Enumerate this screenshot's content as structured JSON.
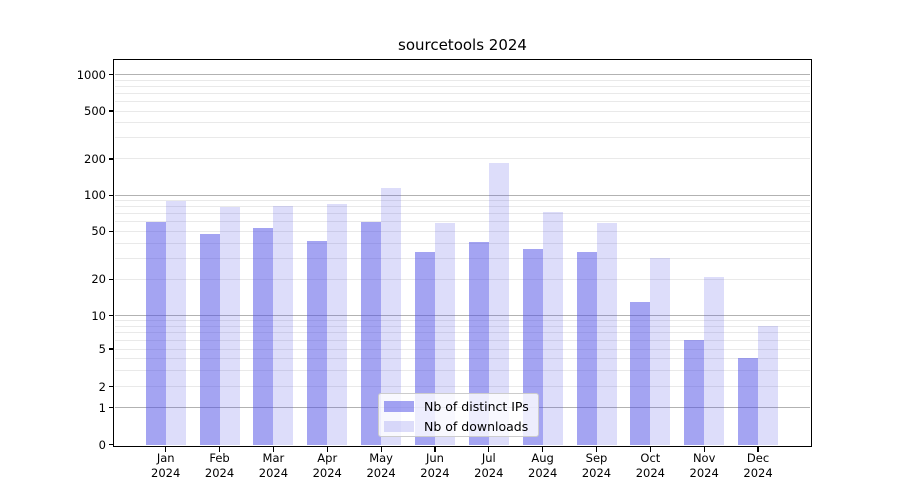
{
  "title": "sourcetools 2024",
  "chart_data": {
    "type": "bar",
    "title": "sourcetools 2024",
    "categories": [
      "Jan 2024",
      "Feb 2024",
      "Mar 2024",
      "Apr 2024",
      "May 2024",
      "Jun 2024",
      "Jul 2024",
      "Aug 2024",
      "Sep 2024",
      "Oct 2024",
      "Nov 2024",
      "Dec 2024"
    ],
    "series": [
      {
        "name": "Nb of distinct IPs",
        "values": [
          60,
          48,
          53,
          42,
          60,
          34,
          41,
          36,
          34,
          13,
          6,
          4
        ]
      },
      {
        "name": "Nb of downloads",
        "values": [
          90,
          80,
          82,
          85,
          115,
          59,
          185,
          72,
          59,
          30,
          21,
          8
        ]
      }
    ],
    "xlabel": "",
    "ylabel": "",
    "yscale": "symlog",
    "yticks": [
      0,
      1,
      2,
      5,
      10,
      20,
      50,
      100,
      200,
      500,
      1000
    ],
    "ylim": [
      0,
      1300
    ],
    "grid": "on",
    "legend_position": "lower center"
  },
  "colors": {
    "ips_bar": "rgba(73,73,229,0.50)",
    "downloads_bar": "rgba(73,73,229,0.19)",
    "grid_major": "#b2b2b2",
    "grid_minor": "#e9e9e9",
    "axis": "#000000"
  }
}
